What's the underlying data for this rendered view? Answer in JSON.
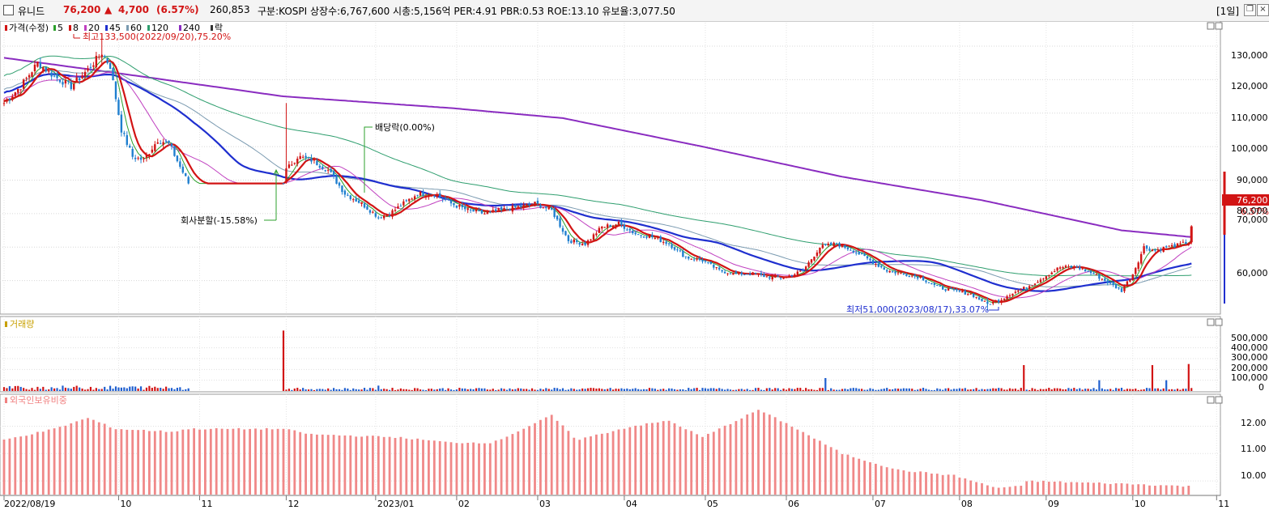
{
  "header": {
    "name": "유니드",
    "price": "76,200",
    "change_arrow": "▲",
    "change": "4,700",
    "change_pct": "(6.57%)",
    "volume": "260,853",
    "info": "구분:KOSPI 상장수:6,767,600 시총:5,156억 PER:4.91 PBR:0.53 ROE:13.10 유보율:3,077.50",
    "period": "[1일]"
  },
  "price_panel": {
    "legend": [
      {
        "label": "가격(수정)",
        "color": "#d21414"
      },
      {
        "label": "5",
        "color": "#2ca02c"
      },
      {
        "label": "8",
        "color": "#d21414"
      },
      {
        "label": "20",
        "color": "#c040c0"
      },
      {
        "label": "45",
        "color": "#1f2fcf"
      },
      {
        "label": "60",
        "color": "#7a9ab0"
      },
      {
        "label": "120",
        "color": "#2e9e6e"
      },
      {
        "label": "240",
        "color": "#8a2cc0"
      },
      {
        "label": "락",
        "color": "#333333"
      }
    ],
    "high_note": "최고133,500(2022/09/20),75.20%",
    "low_note": "최저51,000(2023/08/17),33.07%",
    "split_note": "회사분할(-15.58%)",
    "dividend_note": "배당락(0.00%)",
    "last_price_label": "76,200",
    "last_pct_label": "6.57%",
    "y_ticks": [
      "130,000",
      "120,000",
      "110,000",
      "100,000",
      "90,000",
      "80,000",
      "70,000",
      "60,000"
    ]
  },
  "volume_panel": {
    "legend": "거래량",
    "y_ticks": [
      "500,000",
      "400,000",
      "300,000",
      "200,000",
      "100,000",
      "0"
    ]
  },
  "foreign_panel": {
    "legend": "외국인보유비중",
    "y_ticks": [
      "12.00",
      "11.00",
      "10.00"
    ]
  },
  "x_labels": [
    "2022/08/19",
    "10",
    "11",
    "12",
    "2023/01",
    "02",
    "03",
    "04",
    "05",
    "06",
    "07",
    "08",
    "09",
    "10",
    "11"
  ],
  "chart_data": {
    "type": "candlestick",
    "price_keypoints": [
      [
        0,
        113000
      ],
      [
        6,
        118000
      ],
      [
        12,
        125000
      ],
      [
        18,
        121000
      ],
      [
        24,
        118000
      ],
      [
        30,
        123000
      ],
      [
        35,
        128000
      ],
      [
        38,
        124000
      ],
      [
        42,
        105000
      ],
      [
        46,
        97000
      ],
      [
        50,
        96000
      ],
      [
        55,
        102000
      ],
      [
        59,
        101000
      ],
      [
        63,
        94000
      ],
      [
        66,
        89000
      ],
      [
        70,
        89000
      ],
      [
        100,
        89000
      ],
      [
        101,
        93000
      ],
      [
        105,
        97000
      ],
      [
        110,
        96000
      ],
      [
        116,
        93000
      ],
      [
        122,
        86000
      ],
      [
        128,
        83000
      ],
      [
        134,
        79000
      ],
      [
        138,
        80000
      ],
      [
        143,
        83000
      ],
      [
        148,
        86000
      ],
      [
        154,
        86000
      ],
      [
        160,
        83000
      ],
      [
        166,
        81000
      ],
      [
        172,
        80000
      ],
      [
        178,
        81000
      ],
      [
        184,
        82000
      ],
      [
        190,
        83000
      ],
      [
        196,
        81000
      ],
      [
        202,
        72000
      ],
      [
        208,
        71000
      ],
      [
        214,
        76000
      ],
      [
        220,
        77000
      ],
      [
        226,
        74000
      ],
      [
        232,
        73000
      ],
      [
        238,
        71000
      ],
      [
        244,
        67000
      ],
      [
        250,
        66000
      ],
      [
        256,
        63000
      ],
      [
        262,
        62000
      ],
      [
        268,
        62000
      ],
      [
        274,
        61000
      ],
      [
        280,
        61000
      ],
      [
        286,
        63000
      ],
      [
        292,
        70000
      ],
      [
        298,
        71000
      ],
      [
        304,
        69000
      ],
      [
        310,
        66000
      ],
      [
        316,
        63000
      ],
      [
        322,
        62000
      ],
      [
        328,
        61000
      ],
      [
        334,
        58000
      ],
      [
        340,
        57000
      ],
      [
        346,
        56000
      ],
      [
        352,
        53000
      ],
      [
        356,
        54000
      ],
      [
        360,
        56000
      ],
      [
        366,
        58000
      ],
      [
        372,
        61000
      ],
      [
        378,
        64000
      ],
      [
        384,
        64000
      ],
      [
        390,
        62000
      ],
      [
        396,
        59000
      ],
      [
        400,
        57000
      ],
      [
        404,
        62000
      ],
      [
        408,
        70000
      ],
      [
        412,
        69000
      ],
      [
        416,
        70000
      ],
      [
        420,
        70500
      ],
      [
        424,
        71500
      ],
      [
        425,
        76200
      ]
    ],
    "ma240_keypoints": [
      [
        0,
        126500
      ],
      [
        40,
        122000
      ],
      [
        100,
        115000
      ],
      [
        160,
        111500
      ],
      [
        200,
        108500
      ],
      [
        250,
        100000
      ],
      [
        300,
        91000
      ],
      [
        350,
        84000
      ],
      [
        400,
        75000
      ],
      [
        425,
        73000
      ]
    ],
    "high": {
      "value": 133500,
      "date": "2022/09/20",
      "pct": "75.20%"
    },
    "low": {
      "value": 51000,
      "date": "2023/08/17",
      "pct": "33.07%"
    },
    "last": 76200,
    "y_range": [
      50000,
      137000
    ],
    "series_names": [
      "가격(수정)",
      "5",
      "8",
      "20",
      "45",
      "60",
      "120",
      "240"
    ],
    "volume_spikes": {
      "100": 560000,
      "134": 50000,
      "294": 120000,
      "365": 240000,
      "392": 100000,
      "411": 240000,
      "416": 100000,
      "424": 250000
    },
    "volume_range": [
      0,
      600000
    ],
    "foreign_keypoints": [
      [
        0,
        11.5
      ],
      [
        18,
        11.9
      ],
      [
        30,
        12.3
      ],
      [
        40,
        11.9
      ],
      [
        60,
        11.8
      ],
      [
        66,
        11.9
      ],
      [
        100,
        11.9
      ],
      [
        110,
        11.7
      ],
      [
        140,
        11.6
      ],
      [
        160,
        11.4
      ],
      [
        175,
        11.4
      ],
      [
        190,
        12.1
      ],
      [
        196,
        12.4
      ],
      [
        205,
        11.5
      ],
      [
        225,
        12.0
      ],
      [
        238,
        12.2
      ],
      [
        250,
        11.6
      ],
      [
        262,
        12.2
      ],
      [
        270,
        12.6
      ],
      [
        282,
        12.0
      ],
      [
        300,
        11.0
      ],
      [
        320,
        10.4
      ],
      [
        340,
        10.2
      ],
      [
        355,
        9.75
      ],
      [
        364,
        9.8
      ],
      [
        366,
        10.0
      ],
      [
        400,
        9.9
      ],
      [
        425,
        9.8
      ]
    ],
    "foreign_range": [
      9.5,
      12.9
    ],
    "x_label_index": [
      0,
      41,
      70,
      101,
      133,
      162,
      191,
      222,
      251,
      280,
      311,
      342,
      373,
      404,
      434
    ]
  }
}
